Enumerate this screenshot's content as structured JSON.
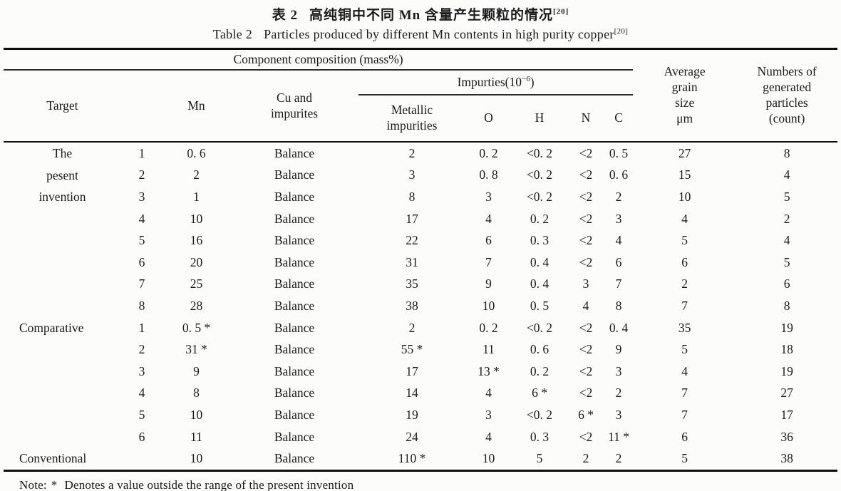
{
  "titles": {
    "zh_label": "表 2",
    "zh_text": "高纯铜中不同 Mn 含量产生颗粒的情况",
    "zh_ref": "[20]",
    "en_label": "Table 2",
    "en_text": "Particles produced by different Mn contents in high purity copper",
    "en_ref": "[20]"
  },
  "table": {
    "header": {
      "target": "Target",
      "component_group": "Component composition (mass%)",
      "mn": "Mn",
      "cu_line1": "Cu and",
      "cu_line2": "impurites",
      "impurities_prefix": "Impurties(10",
      "impurities_sup": "−6",
      "impurities_suffix": ")",
      "metallic_line1": "Metallic",
      "metallic_line2": "impurities",
      "o": "O",
      "h": "H",
      "n": "N",
      "c": "C",
      "grain_line1": "Average",
      "grain_line2": "grain",
      "grain_line3": "size",
      "grain_line4": "μm",
      "particles_line1": "Numbers of",
      "particles_line2": "generated",
      "particles_line3": "particles",
      "particles_line4": "(count)"
    },
    "groups": [
      {
        "label_lines": [
          "The",
          "pesent",
          "invention"
        ],
        "align": "center",
        "rows": [
          {
            "no": "1",
            "mn": "0. 6",
            "cu": "Balance",
            "metallic": "2",
            "o": "0. 2",
            "h": "<0. 2",
            "n": "<2",
            "c": "0. 5",
            "grain": "27",
            "particles": "8"
          },
          {
            "no": "2",
            "mn": "2",
            "cu": "Balance",
            "metallic": "3",
            "o": "0. 8",
            "h": "<0. 2",
            "n": "<2",
            "c": "0. 6",
            "grain": "15",
            "particles": "4"
          },
          {
            "no": "3",
            "mn": "1",
            "cu": "Balance",
            "metallic": "8",
            "o": "3",
            "h": "<0. 2",
            "n": "<2",
            "c": "2",
            "grain": "10",
            "particles": "5"
          },
          {
            "no": "4",
            "mn": "10",
            "cu": "Balance",
            "metallic": "17",
            "o": "4",
            "h": "0. 2",
            "n": "<2",
            "c": "3",
            "grain": "4",
            "particles": "2"
          },
          {
            "no": "5",
            "mn": "16",
            "cu": "Balance",
            "metallic": "22",
            "o": "6",
            "h": "0. 3",
            "n": "<2",
            "c": "4",
            "grain": "5",
            "particles": "4"
          },
          {
            "no": "6",
            "mn": "20",
            "cu": "Balance",
            "metallic": "31",
            "o": "7",
            "h": "0. 4",
            "n": "<2",
            "c": "6",
            "grain": "6",
            "particles": "5"
          },
          {
            "no": "7",
            "mn": "25",
            "cu": "Balance",
            "metallic": "35",
            "o": "9",
            "h": "0. 4",
            "n": "3",
            "c": "7",
            "grain": "2",
            "particles": "6"
          },
          {
            "no": "8",
            "mn": "28",
            "cu": "Balance",
            "metallic": "38",
            "o": "10",
            "h": "0. 5",
            "n": "4",
            "c": "8",
            "grain": "7",
            "particles": "8"
          }
        ]
      },
      {
        "label_lines": [
          "Comparative"
        ],
        "align": "left",
        "rows": [
          {
            "no": "1",
            "mn": "0. 5 *",
            "cu": "Balance",
            "metallic": "2",
            "o": "0. 2",
            "h": "<0. 2",
            "n": "<2",
            "c": "0. 4",
            "grain": "35",
            "particles": "19"
          },
          {
            "no": "2",
            "mn": "31 *",
            "cu": "Balance",
            "metallic": "55 *",
            "o": "11",
            "h": "0. 6",
            "n": "<2",
            "c": "9",
            "grain": "5",
            "particles": "18"
          },
          {
            "no": "3",
            "mn": "9",
            "cu": "Balance",
            "metallic": "17",
            "o": "13 *",
            "h": "0. 2",
            "n": "<2",
            "c": "3",
            "grain": "4",
            "particles": "19"
          },
          {
            "no": "4",
            "mn": "8",
            "cu": "Balance",
            "metallic": "14",
            "o": "4",
            "h": "6 *",
            "n": "<2",
            "c": "2",
            "grain": "7",
            "particles": "27"
          },
          {
            "no": "5",
            "mn": "10",
            "cu": "Balance",
            "metallic": "19",
            "o": "3",
            "h": "<0. 2",
            "n": "6 *",
            "c": "3",
            "grain": "7",
            "particles": "17"
          },
          {
            "no": "6",
            "mn": "11",
            "cu": "Balance",
            "metallic": "24",
            "o": "4",
            "h": "0. 3",
            "n": "<2",
            "c": "11 *",
            "grain": "6",
            "particles": "36"
          }
        ]
      },
      {
        "label_lines": [
          "Conventional"
        ],
        "align": "left",
        "rows": [
          {
            "no": "",
            "mn": "10",
            "cu": "Balance",
            "metallic": "110 *",
            "o": "10",
            "h": "5",
            "n": "2",
            "c": "2",
            "grain": "5",
            "particles": "38"
          }
        ]
      }
    ]
  },
  "note": {
    "label": "Note:",
    "star": "*",
    "text": "Denotes a value outside the range of the present invention"
  }
}
